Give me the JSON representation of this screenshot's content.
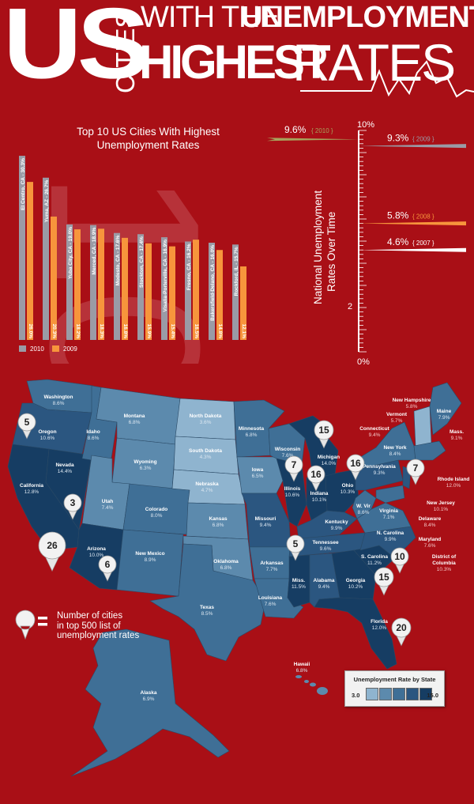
{
  "header": {
    "us": "US",
    "cities": "CITIES",
    "with_the": "WITH THE",
    "unemployment": "UNEMPLOYMENT",
    "highest": "HIGHEST",
    "rates": "RATES"
  },
  "chart_data": [
    {
      "type": "bar",
      "title_line1": "Top 10 US Cities With Highest",
      "title_line2": "Unemployment Rates",
      "background_number": "10",
      "categories": [
        "El Centro, CA - 30.3%",
        "Yuma, AZ - 26.7%",
        "Yuba City, CA - 19.0%",
        "Merced, CA - 18.9%",
        "Modesto, CA - 17.6%",
        "Stockton, CA - 17.4%",
        "Visalia-Porterville, CA - 16.9%",
        "Fresno, CA - 16.2%",
        "Bakersfield-Delano, CA - 16.0%",
        "Rockford, IL - 15.7%"
      ],
      "series": [
        {
          "name": "2010",
          "values": [
            30.3,
            26.7,
            19.0,
            18.9,
            17.6,
            17.4,
            16.9,
            16.2,
            16.0,
            15.7
          ]
        },
        {
          "name": "2009",
          "values": [
            26.0,
            20.3,
            18.2,
            18.3,
            16.8,
            15.9,
            15.4,
            16.5,
            14.8,
            12.1
          ]
        }
      ],
      "value_labels_2009": [
        "26.0%",
        "20.3%",
        "18.2%",
        "18.3%",
        "16.8%",
        "15.9%",
        "15.4%",
        "16.5%",
        "14.8%",
        "12.1%"
      ],
      "colors": {
        "2010": "#9a9ba6",
        "2009": "#f7953c"
      },
      "ylim": [
        0,
        32
      ],
      "legend": [
        "2010",
        "2009"
      ],
      "legend_position": "bottom-left"
    },
    {
      "type": "line",
      "title_line1": "National Unemployment",
      "title_line2": "Rates Over Time",
      "axis_labels": {
        "top": "10%",
        "mid": "2",
        "bottom": "0%"
      },
      "ylim": [
        0,
        10
      ],
      "points": [
        {
          "year": "2010",
          "value": 9.6,
          "label": "9.6%",
          "year_label": "{ 2010 }",
          "color": "#a7a35c",
          "side": "left"
        },
        {
          "year": "2009",
          "value": 9.3,
          "label": "9.3%",
          "year_label": "{ 2009 }",
          "color": "#9a9ba6",
          "side": "right"
        },
        {
          "year": "2008",
          "value": 5.8,
          "label": "5.8%",
          "year_label": "{ 2008 }",
          "color": "#f7953c",
          "side": "right"
        },
        {
          "year": "2007",
          "value": 4.6,
          "label": "4.6%",
          "year_label": "{ 2007 }",
          "color": "#ffffff",
          "side": "right"
        }
      ]
    },
    {
      "type": "heatmap",
      "title": "Unemployment Rate by State",
      "scale_min": "3.0",
      "scale_max": "15.0",
      "scale_colors": [
        "#8fb4cf",
        "#5c8aad",
        "#3f6f96",
        "#2b5680",
        "#163d63"
      ],
      "states": [
        {
          "name": "Washington",
          "value": "8.6%"
        },
        {
          "name": "Oregon",
          "value": "10.6%"
        },
        {
          "name": "California",
          "value": "12.8%"
        },
        {
          "name": "Idaho",
          "value": "8.6%"
        },
        {
          "name": "Nevada",
          "value": "14.4%"
        },
        {
          "name": "Montana",
          "value": "6.8%"
        },
        {
          "name": "Wyoming",
          "value": "6.3%"
        },
        {
          "name": "Utah",
          "value": "7.4%"
        },
        {
          "name": "Arizona",
          "value": "10.0%"
        },
        {
          "name": "Colorado",
          "value": "8.0%"
        },
        {
          "name": "New Mexico",
          "value": "8.9%"
        },
        {
          "name": "North Dakota",
          "value": "3.6%"
        },
        {
          "name": "South Dakota",
          "value": "4.3%"
        },
        {
          "name": "Nebraska",
          "value": "4.7%"
        },
        {
          "name": "Kansas",
          "value": "6.8%"
        },
        {
          "name": "Oklahoma",
          "value": "6.8%"
        },
        {
          "name": "Texas",
          "value": "8.5%"
        },
        {
          "name": "Minnesota",
          "value": "6.8%"
        },
        {
          "name": "Iowa",
          "value": "6.5%"
        },
        {
          "name": "Missouri",
          "value": "9.4%"
        },
        {
          "name": "Arkansas",
          "value": "7.7%"
        },
        {
          "name": "Louisiana",
          "value": "7.6%"
        },
        {
          "name": "Wisconsin",
          "value": "7.6%"
        },
        {
          "name": "Illinois",
          "value": "10.6%"
        },
        {
          "name": "Michigan",
          "value": "14.0%"
        },
        {
          "name": "Indiana",
          "value": "10.1%"
        },
        {
          "name": "Ohio",
          "value": "10.3%"
        },
        {
          "name": "Kentucky",
          "value": "9.9%"
        },
        {
          "name": "Tennessee",
          "value": "9.6%"
        },
        {
          "name": "Miss.",
          "value": "11.5%"
        },
        {
          "name": "Alabama",
          "value": "9.4%"
        },
        {
          "name": "Georgia",
          "value": "10.2%"
        },
        {
          "name": "Florida",
          "value": "12.0%"
        },
        {
          "name": "S. Carolina",
          "value": "11.2%"
        },
        {
          "name": "N. Carolina",
          "value": "9.9%"
        },
        {
          "name": "Virginia",
          "value": "7.1%"
        },
        {
          "name": "W. Vir",
          "value": "8.6%"
        },
        {
          "name": "Pennsylvania",
          "value": "9.3%"
        },
        {
          "name": "New York",
          "value": "8.4%"
        },
        {
          "name": "Maine",
          "value": "7.9%"
        },
        {
          "name": "Alaska",
          "value": "6.9%"
        },
        {
          "name": "Hawaii",
          "value": "6.8%"
        }
      ],
      "external_labels": [
        {
          "name": "New Hampshire",
          "value": "5.8%"
        },
        {
          "name": "Vermont",
          "value": "5.7%"
        },
        {
          "name": "Mass.",
          "value": "9.1%"
        },
        {
          "name": "Connecticut",
          "value": "9.4%"
        },
        {
          "name": "Rhode Island",
          "value": "12.0%"
        },
        {
          "name": "New Jersey",
          "value": "10.1%"
        },
        {
          "name": "Delaware",
          "value": "8.4%"
        },
        {
          "name": "Maryland",
          "value": "7.6%"
        },
        {
          "name": "District of",
          "value": "10.3%",
          "name_line2": "Columbia"
        }
      ],
      "pins": [
        {
          "state": "Oregon",
          "count": "5"
        },
        {
          "state": "California",
          "count": "26"
        },
        {
          "state": "Nevada",
          "count": "3"
        },
        {
          "state": "Arizona",
          "count": "6"
        },
        {
          "state": "Illinois",
          "count": "7"
        },
        {
          "state": "Indiana",
          "count": "16"
        },
        {
          "state": "Michigan",
          "count": "15"
        },
        {
          "state": "Ohio",
          "count": "16"
        },
        {
          "state": "New York",
          "count": "7"
        },
        {
          "state": "Miss.",
          "count": "5"
        },
        {
          "state": "S. Carolina",
          "count": "10"
        },
        {
          "state": "Georgia",
          "count": "15"
        },
        {
          "state": "Florida",
          "count": "20"
        }
      ],
      "pin_legend": [
        "Number of cities",
        "in top 500 list of",
        "unemployment rates"
      ]
    }
  ]
}
